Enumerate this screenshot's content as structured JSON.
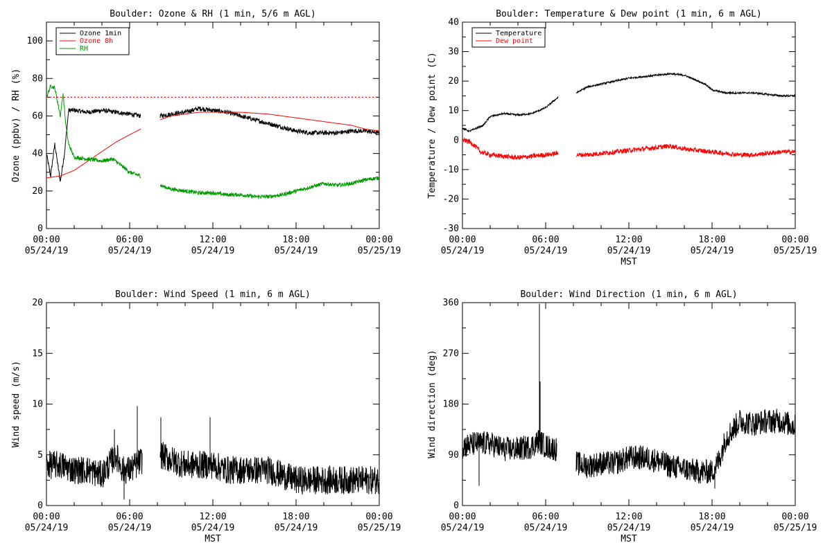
{
  "chart_data": [
    {
      "type": "line",
      "title": "Boulder: Ozone & RH (1 min, 5/6 m AGL)",
      "ylabel": "Ozone (ppbv) / RH (%)",
      "xlabel": "",
      "ylim": [
        0,
        110
      ],
      "yticks": [
        0,
        20,
        40,
        60,
        80,
        100
      ],
      "xlim_hours": [
        0,
        24
      ],
      "xticks": [
        {
          "time": "00:00",
          "date": "05/24/19"
        },
        {
          "time": "06:00",
          "date": "05/24/19"
        },
        {
          "time": "12:00",
          "date": "05/24/19"
        },
        {
          "time": "18:00",
          "date": "05/24/19"
        },
        {
          "time": "00:00",
          "date": "05/25/19"
        }
      ],
      "legend_position": "top-left",
      "reference_line": {
        "y": 70,
        "color": "#ff0000",
        "style": "dotted"
      },
      "series": [
        {
          "name": "Ozone 1min",
          "color": "#000000",
          "noise": 1.2,
          "segments": [
            {
              "x": [
                0.0,
                0.3,
                0.6,
                1.0,
                1.3,
                1.6,
                2.0,
                3.0,
                4.0,
                5.0,
                6.0,
                6.8
              ],
              "y": [
                40,
                28,
                45,
                25,
                40,
                63,
                63,
                62,
                63,
                62,
                61,
                60
              ]
            },
            {
              "x": [
                8.2,
                9.0,
                10.0,
                11.0,
                12.0,
                13.0,
                14.0,
                15.0,
                16.0,
                17.0,
                18.0,
                19.0,
                20.0,
                21.0,
                22.0,
                23.0,
                24.0
              ],
              "y": [
                60,
                61,
                62,
                64,
                63,
                62,
                60,
                58,
                56,
                54,
                52,
                51,
                51,
                51,
                52,
                52,
                51
              ]
            }
          ]
        },
        {
          "name": "Ozone 8h",
          "color": "#ff0000",
          "noise": 0,
          "segments": [
            {
              "x": [
                0.0,
                1.0,
                2.0,
                3.0,
                4.0,
                5.0,
                6.0,
                6.8
              ],
              "y": [
                27,
                28,
                31,
                36,
                41,
                46,
                50,
                53
              ]
            },
            {
              "x": [
                8.2,
                9.0,
                10.0,
                11.0,
                12.0,
                13.0,
                14.0,
                15.0,
                16.0,
                17.0,
                18.0,
                19.0,
                20.0,
                21.0,
                22.0,
                23.0,
                24.0
              ],
              "y": [
                58,
                60,
                61,
                62,
                62,
                62,
                62,
                61.5,
                61,
                60,
                59,
                58,
                57,
                56,
                55,
                53,
                52
              ]
            }
          ]
        },
        {
          "name": "RH",
          "color": "#009900",
          "noise": 1.0,
          "segments": [
            {
              "x": [
                0.0,
                0.3,
                0.6,
                1.0,
                1.2,
                1.4,
                1.6,
                2.0,
                3.0,
                4.0,
                4.8,
                5.5,
                6.0,
                6.8
              ],
              "y": [
                70,
                76,
                75,
                60,
                72,
                55,
                45,
                38,
                37,
                36,
                37,
                33,
                30,
                28
              ]
            },
            {
              "x": [
                8.2,
                9.0,
                10.0,
                11.0,
                12.0,
                13.0,
                14.0,
                15.0,
                16.0,
                17.0,
                18.0,
                19.0,
                20.0,
                21.0,
                22.0,
                23.0,
                24.0
              ],
              "y": [
                23,
                21,
                20,
                19,
                19,
                18,
                18,
                17,
                17,
                18,
                20,
                22,
                24,
                23,
                24,
                26,
                27
              ]
            }
          ]
        }
      ]
    },
    {
      "type": "line",
      "title": "Boulder: Temperature & Dew point (1 min, 6 m AGL)",
      "ylabel": "Temperature / Dew point (C)",
      "xlabel": "MST",
      "ylim": [
        -30,
        40
      ],
      "yticks": [
        -30,
        -20,
        -10,
        0,
        10,
        20,
        30,
        40
      ],
      "xlim_hours": [
        0,
        24
      ],
      "xticks": [
        {
          "time": "00:00",
          "date": "05/24/19"
        },
        {
          "time": "06:00",
          "date": "05/24/19"
        },
        {
          "time": "12:00",
          "date": "05/24/19"
        },
        {
          "time": "18:00",
          "date": "05/24/19"
        },
        {
          "time": "00:00",
          "date": "05/25/19"
        }
      ],
      "legend_position": "top-left",
      "series": [
        {
          "name": "Temperature",
          "color": "#000000",
          "noise": 0.3,
          "segments": [
            {
              "x": [
                0.0,
                0.5,
                1.0,
                1.5,
                2.0,
                3.0,
                4.0,
                5.0,
                5.5,
                6.0,
                6.5,
                6.9
              ],
              "y": [
                4,
                3,
                4,
                5,
                8,
                9,
                8.5,
                9,
                10,
                11,
                13,
                14.5
              ]
            },
            {
              "x": [
                8.2,
                9.0,
                10.0,
                11.0,
                12.0,
                13.0,
                14.0,
                15.0,
                16.0,
                17.0,
                17.5,
                18.0,
                19.0,
                20.0,
                21.0,
                22.0,
                23.0,
                24.0
              ],
              "y": [
                16,
                18,
                19,
                20,
                21,
                21.5,
                22,
                22.5,
                22,
                20,
                19,
                17,
                16,
                16,
                16,
                15.5,
                15,
                15
              ]
            }
          ]
        },
        {
          "name": "Dew point",
          "color": "#ff0000",
          "noise": 0.8,
          "segments": [
            {
              "x": [
                0.0,
                0.5,
                0.9,
                1.3,
                2.0,
                3.0,
                4.0,
                5.0,
                6.0,
                6.9
              ],
              "y": [
                0,
                -0.5,
                -2,
                -4,
                -5,
                -5.5,
                -6,
                -5.5,
                -5,
                -4.5
              ]
            },
            {
              "x": [
                8.2,
                9.0,
                10.0,
                11.0,
                12.0,
                13.0,
                14.0,
                15.0,
                16.0,
                17.0,
                18.0,
                19.0,
                20.0,
                21.0,
                22.0,
                23.0,
                24.0
              ],
              "y": [
                -5,
                -5,
                -4.5,
                -4,
                -3.5,
                -3,
                -2.5,
                -2,
                -3,
                -3.5,
                -4,
                -4.5,
                -5,
                -5,
                -4.5,
                -4,
                -4
              ]
            }
          ]
        }
      ]
    },
    {
      "type": "line",
      "title": "Boulder: Wind Speed (1 min, 6 m AGL)",
      "ylabel": "Wind speed (m/s)",
      "xlabel": "MST",
      "ylim": [
        0,
        20
      ],
      "yticks": [
        0,
        5,
        10,
        15,
        20
      ],
      "xlim_hours": [
        0,
        24
      ],
      "xticks": [
        {
          "time": "00:00",
          "date": "05/24/19"
        },
        {
          "time": "06:00",
          "date": "05/24/19"
        },
        {
          "time": "12:00",
          "date": "05/24/19"
        },
        {
          "time": "18:00",
          "date": "05/24/19"
        },
        {
          "time": "00:00",
          "date": "05/25/19"
        }
      ],
      "series": [
        {
          "name": "",
          "color": "#000000",
          "noise": 1.4,
          "segments": [
            {
              "x": [
                0.0,
                1.0,
                2.0,
                3.0,
                4.0,
                4.5,
                5.0,
                5.5,
                6.0,
                6.5,
                6.9
              ],
              "y": [
                4,
                4,
                3.5,
                3.5,
                3,
                4,
                5,
                3.5,
                3.5,
                4,
                4.5
              ]
            },
            {
              "x": [
                8.2,
                9.0,
                10.0,
                11.0,
                12.0,
                13.0,
                14.0,
                15.0,
                16.0,
                17.0,
                18.0,
                19.0,
                20.0,
                21.0,
                22.0,
                23.0,
                24.0
              ],
              "y": [
                5,
                4.5,
                4,
                4,
                4,
                3.5,
                3.5,
                3.5,
                3.5,
                3,
                2.5,
                2.5,
                2.5,
                2.5,
                2.5,
                2.5,
                2.5
              ]
            }
          ]
        }
      ],
      "spikes": [
        {
          "x": 6.55,
          "y": 9.8
        },
        {
          "x": 8.25,
          "y": 8.7
        },
        {
          "x": 11.8,
          "y": 8.7
        },
        {
          "x": 4.9,
          "y": 7.5
        },
        {
          "x": 5.6,
          "y": 0.6
        }
      ]
    },
    {
      "type": "line",
      "title": "Boulder: Wind Direction (1 min, 6 m AGL)",
      "ylabel": "Wind direction (deg)",
      "xlabel": "MST",
      "ylim": [
        0,
        360
      ],
      "yticks": [
        0,
        90,
        180,
        270,
        360
      ],
      "xlim_hours": [
        0,
        24
      ],
      "xticks": [
        {
          "time": "00:00",
          "date": "05/24/19"
        },
        {
          "time": "06:00",
          "date": "05/24/19"
        },
        {
          "time": "12:00",
          "date": "05/24/19"
        },
        {
          "time": "18:00",
          "date": "05/24/19"
        },
        {
          "time": "00:00",
          "date": "05/25/19"
        }
      ],
      "series": [
        {
          "name": "",
          "color": "#000000",
          "noise": 22,
          "segments": [
            {
              "x": [
                0.0,
                1.0,
                2.0,
                3.0,
                4.0,
                5.0,
                5.5,
                6.0,
                6.8
              ],
              "y": [
                105,
                110,
                110,
                100,
                100,
                105,
                115,
                105,
                100
              ]
            },
            {
              "x": [
                8.2,
                9.0,
                10.0,
                11.0,
                12.0,
                13.0,
                14.0,
                15.0,
                16.0,
                17.0,
                18.0,
                18.5,
                19.0,
                20.0,
                21.0,
                22.0,
                23.0,
                24.0
              ],
              "y": [
                75,
                70,
                75,
                75,
                85,
                85,
                80,
                70,
                65,
                60,
                60,
                80,
                120,
                150,
                145,
                150,
                150,
                140
              ]
            }
          ]
        }
      ],
      "spikes": [
        {
          "x": 5.55,
          "y": 358
        },
        {
          "x": 5.6,
          "y": 220
        },
        {
          "x": 1.2,
          "y": 35
        },
        {
          "x": 18.2,
          "y": 30
        }
      ]
    }
  ]
}
